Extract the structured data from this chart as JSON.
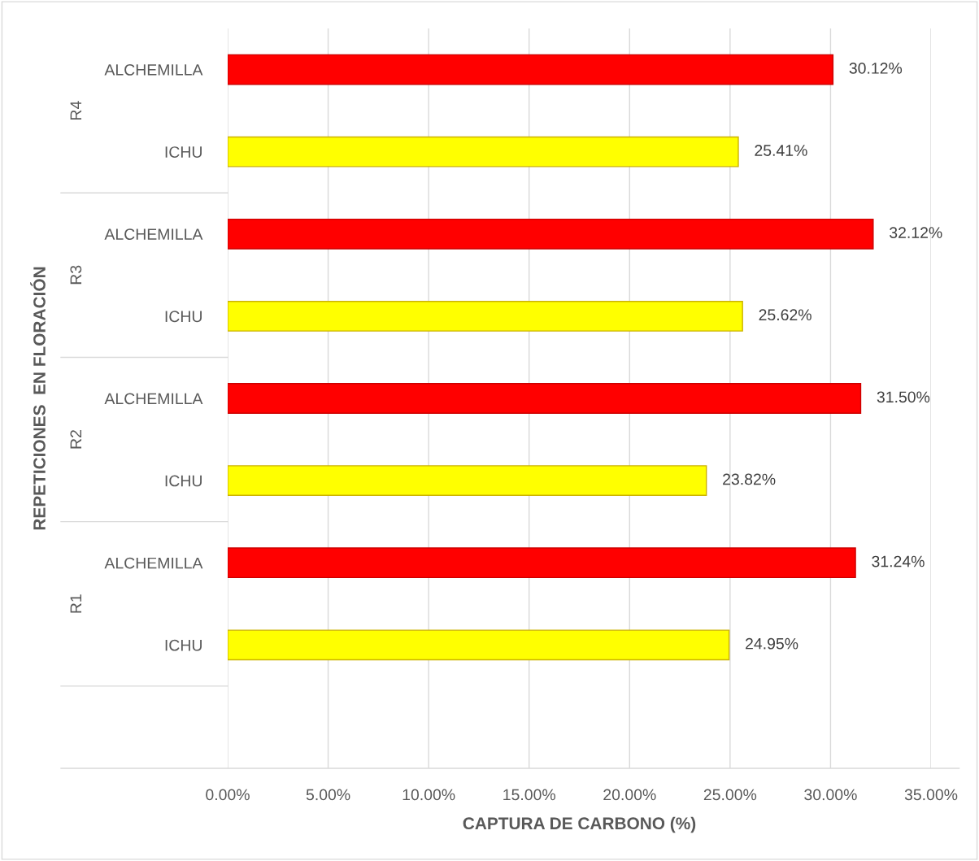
{
  "chart_data": {
    "type": "bar",
    "orientation": "horizontal",
    "xlabel": "CAPTURA DE CARBONO (%)",
    "ylabel": "REPETICIONES  EN FLORACIÓN",
    "categories": [
      "ALCHEMILLA",
      "ICHU",
      "ALCHEMILLA",
      "ICHU",
      "ALCHEMILLA",
      "ICHU",
      "ALCHEMILLA",
      "ICHU",
      null
    ],
    "values": [
      30.12,
      25.41,
      32.12,
      25.62,
      31.5,
      23.82,
      31.24,
      24.95,
      null
    ],
    "colors": [
      "#ff0000",
      "#ffff00",
      "#ff0000",
      "#ffff00",
      "#ff0000",
      "#ffff00",
      "#ff0000",
      "#ffff00",
      "#ffff00"
    ],
    "value_labels": [
      "30.12%",
      "25.41%",
      "32.12%",
      "25.62%",
      "31.50%",
      "23.82%",
      "31.24%",
      "24.95%",
      null
    ],
    "annotations": [
      "R4",
      "R3",
      "R2",
      "R1"
    ],
    "xlim": [
      0,
      35
    ],
    "xticks": [
      {
        "value": 0,
        "label": "0.00%"
      },
      {
        "value": 5,
        "label": "5.00%"
      },
      {
        "value": 10,
        "label": "10.00%"
      },
      {
        "value": 15,
        "label": "15.00%"
      },
      {
        "value": 20,
        "label": "20.00%"
      },
      {
        "value": 25,
        "label": "25.00%"
      },
      {
        "value": 30,
        "label": "30.00%"
      },
      {
        "value": 35,
        "label": "35.00%"
      }
    ],
    "grid": "x"
  }
}
